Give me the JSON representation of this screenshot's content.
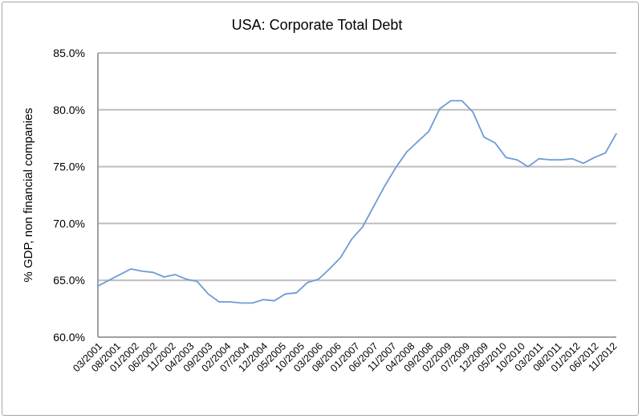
{
  "chart_data": {
    "type": "line",
    "title": "USA: Corporate Total Debt",
    "xlabel": "",
    "ylabel": "% GDP, non financial companies",
    "ylim": [
      60,
      85
    ],
    "yticks": [
      "60.0%",
      "65.0%",
      "70.0%",
      "75.0%",
      "80.0%",
      "85.0%"
    ],
    "ytick_values": [
      60,
      65,
      70,
      75,
      80,
      85
    ],
    "xtick_labels": [
      "03/2001",
      "08/2001",
      "01/2002",
      "06/2002",
      "11/2002",
      "04/2003",
      "09/2003",
      "02/2004",
      "07/2004",
      "12/2004",
      "05/2005",
      "10/2005",
      "03/2006",
      "08/2006",
      "01/2007",
      "06/2007",
      "11/2007",
      "04/2008",
      "09/2008",
      "02/2009",
      "07/2009",
      "12/2009",
      "05/2010",
      "10/2010",
      "03/2011",
      "08/2011",
      "01/2012",
      "06/2012",
      "11/2012"
    ],
    "grid": true,
    "legend": "none",
    "line_color": "#6f9bd6",
    "series": [
      {
        "x": [
          "03/2001",
          "06/2001",
          "09/2001",
          "12/2001",
          "03/2002",
          "06/2002",
          "09/2002",
          "12/2002",
          "03/2003",
          "06/2003",
          "09/2003",
          "12/2003",
          "03/2004",
          "06/2004",
          "09/2004",
          "12/2004",
          "03/2005",
          "06/2005",
          "09/2005",
          "12/2005",
          "03/2006",
          "06/2006",
          "09/2006",
          "12/2006",
          "03/2007",
          "06/2007",
          "09/2007",
          "12/2007",
          "03/2008",
          "06/2008",
          "09/2008",
          "12/2008",
          "03/2009",
          "06/2009",
          "09/2009",
          "12/2009",
          "03/2010",
          "06/2010",
          "09/2010",
          "12/2010",
          "03/2011",
          "06/2011",
          "09/2011",
          "12/2011",
          "03/2012",
          "06/2012",
          "09/2012",
          "12/2012"
        ],
        "values": [
          64.5,
          65.0,
          65.5,
          66.0,
          65.8,
          65.7,
          65.3,
          65.5,
          65.1,
          64.9,
          63.8,
          63.1,
          63.1,
          63.0,
          63.0,
          63.3,
          63.2,
          63.8,
          63.9,
          64.8,
          65.1,
          66.0,
          67.0,
          68.6,
          69.7,
          71.5,
          73.3,
          74.9,
          76.3,
          77.2,
          78.1,
          80.1,
          80.8,
          80.8,
          79.8,
          77.6,
          77.1,
          75.8,
          75.6,
          75.0,
          75.7,
          75.6,
          75.6,
          75.7,
          75.3,
          75.8,
          76.2,
          77.9
        ]
      }
    ]
  }
}
